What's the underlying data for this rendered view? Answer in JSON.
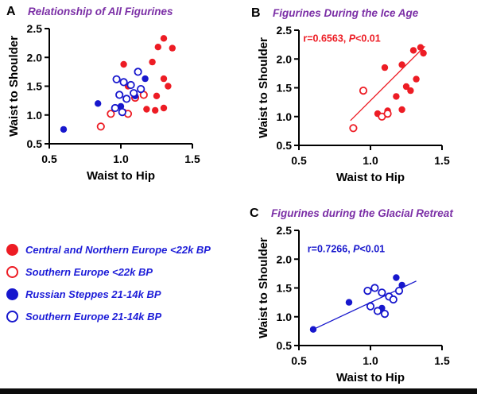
{
  "page": {
    "background": "#ffffff"
  },
  "colors": {
    "red": "#ed1c24",
    "blue": "#1717cd",
    "purple": "#7b2fa6",
    "legend_text": "#1d1dd8",
    "axis": "#000000"
  },
  "legend": {
    "items": [
      {
        "label": "Central and Northern Europe <22k BP",
        "color": "red",
        "filled": true
      },
      {
        "label": "Southern Europe <22k BP",
        "color": "red",
        "filled": false
      },
      {
        "label": "Russian Steppes 21-14k BP",
        "color": "blue",
        "filled": true
      },
      {
        "label": "Southern Europe 21-14k BP",
        "color": "blue",
        "filled": false
      }
    ]
  },
  "chart_data": [
    {
      "type": "scatter",
      "panel_label": "A",
      "title": "Relationship of All Figurines",
      "xlabel": "Waist to Hip",
      "ylabel": "Waist to Shoulder",
      "xlim": [
        0.5,
        1.5
      ],
      "ylim": [
        0.5,
        2.5
      ],
      "xticks": [
        0.5,
        1.0,
        1.5
      ],
      "yticks": [
        0.5,
        1.0,
        1.5,
        2.0,
        2.5
      ],
      "annotation": null,
      "regression": null,
      "series": [
        {
          "name": "Central and Northern Europe <22k BP",
          "color": "red",
          "filled": true,
          "points": [
            [
              1.3,
              2.33
            ],
            [
              1.26,
              2.18
            ],
            [
              1.36,
              2.16
            ],
            [
              1.22,
              1.92
            ],
            [
              1.02,
              1.88
            ],
            [
              1.3,
              1.63
            ],
            [
              1.33,
              1.5
            ],
            [
              1.05,
              1.5
            ],
            [
              1.25,
              1.33
            ],
            [
              1.18,
              1.1
            ],
            [
              1.24,
              1.08
            ],
            [
              1.3,
              1.12
            ],
            [
              1.02,
              1.05
            ]
          ]
        },
        {
          "name": "Southern Europe <22k BP",
          "color": "red",
          "filled": false,
          "points": [
            [
              0.86,
              0.8
            ],
            [
              0.93,
              1.02
            ],
            [
              1.05,
              1.02
            ],
            [
              1.1,
              1.3
            ],
            [
              1.16,
              1.35
            ]
          ]
        },
        {
          "name": "Russian Steppes 21-14k BP",
          "color": "blue",
          "filled": true,
          "points": [
            [
              0.6,
              0.75
            ],
            [
              0.84,
              1.2
            ],
            [
              1.0,
              1.15
            ],
            [
              1.1,
              1.33
            ],
            [
              1.17,
              1.63
            ]
          ]
        },
        {
          "name": "Southern Europe 21-14k BP",
          "color": "blue",
          "filled": false,
          "points": [
            [
              0.97,
              1.62
            ],
            [
              1.02,
              1.57
            ],
            [
              1.07,
              1.52
            ],
            [
              1.12,
              1.75
            ],
            [
              0.99,
              1.35
            ],
            [
              1.04,
              1.28
            ],
            [
              0.96,
              1.12
            ],
            [
              1.01,
              1.05
            ],
            [
              1.09,
              1.38
            ],
            [
              1.14,
              1.45
            ]
          ]
        }
      ]
    },
    {
      "type": "scatter",
      "panel_label": "B",
      "title": "Figurines During the Ice Age",
      "xlabel": "Waist to Hip",
      "ylabel": "Waist to Shoulder",
      "xlim": [
        0.5,
        1.5
      ],
      "ylim": [
        0.5,
        2.5
      ],
      "xticks": [
        0.5,
        1.0,
        1.5
      ],
      "yticks": [
        0.5,
        1.0,
        1.5,
        2.0,
        2.5
      ],
      "annotation": {
        "text": "r=0.6563, P<0.01",
        "x": 0.53,
        "y": 2.3,
        "color": "red"
      },
      "regression": {
        "x": [
          0.86,
          1.38
        ],
        "y": [
          0.93,
          2.22
        ],
        "color": "red"
      },
      "series": [
        {
          "name": "Central and Northern Europe <22k BP",
          "color": "red",
          "filled": true,
          "points": [
            [
              1.35,
              2.2
            ],
            [
              1.3,
              2.15
            ],
            [
              1.37,
              2.1
            ],
            [
              1.22,
              1.9
            ],
            [
              1.1,
              1.85
            ],
            [
              1.32,
              1.65
            ],
            [
              1.25,
              1.52
            ],
            [
              1.28,
              1.45
            ],
            [
              1.18,
              1.35
            ],
            [
              1.22,
              1.12
            ],
            [
              1.12,
              1.1
            ],
            [
              1.05,
              1.05
            ]
          ]
        },
        {
          "name": "Southern Europe <22k BP",
          "color": "red",
          "filled": false,
          "points": [
            [
              0.88,
              0.8
            ],
            [
              0.95,
              1.45
            ],
            [
              1.08,
              1.0
            ],
            [
              1.12,
              1.05
            ]
          ]
        }
      ]
    },
    {
      "type": "scatter",
      "panel_label": "C",
      "title": "Figurines during the Glacial Retreat",
      "xlabel": "Waist to Hip",
      "ylabel": "Waist to Shoulder",
      "xlim": [
        0.5,
        1.5
      ],
      "ylim": [
        0.5,
        2.5
      ],
      "xticks": [
        0.5,
        1.0,
        1.5
      ],
      "yticks": [
        0.5,
        1.0,
        1.5,
        2.0,
        2.5
      ],
      "annotation": {
        "text": "r=0.7266, P<0.01",
        "x": 0.56,
        "y": 2.12,
        "color": "blue"
      },
      "regression": {
        "x": [
          0.6,
          1.32
        ],
        "y": [
          0.78,
          1.62
        ],
        "color": "blue"
      },
      "series": [
        {
          "name": "Russian Steppes 21-14k BP",
          "color": "blue",
          "filled": true,
          "points": [
            [
              0.6,
              0.78
            ],
            [
              0.85,
              1.25
            ],
            [
              1.0,
              1.2
            ],
            [
              1.08,
              1.15
            ],
            [
              1.18,
              1.68
            ],
            [
              1.22,
              1.55
            ]
          ]
        },
        {
          "name": "Southern Europe 21-14k BP",
          "color": "blue",
          "filled": false,
          "points": [
            [
              0.98,
              1.45
            ],
            [
              1.03,
              1.5
            ],
            [
              1.08,
              1.42
            ],
            [
              1.13,
              1.35
            ],
            [
              1.0,
              1.18
            ],
            [
              1.05,
              1.1
            ],
            [
              1.1,
              1.05
            ],
            [
              1.16,
              1.3
            ],
            [
              1.2,
              1.45
            ]
          ]
        }
      ]
    }
  ]
}
